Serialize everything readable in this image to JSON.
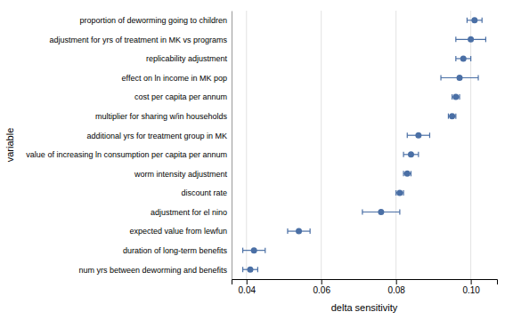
{
  "chart_data": {
    "type": "errorbar",
    "orientation": "horizontal",
    "categories": [
      "proportion of deworming going to children",
      "adjustment for yrs of treatment in MK vs programs",
      "replicability adjustment",
      "effect on ln income in MK pop",
      "cost per capita per annum",
      "multiplier for sharing w/in households",
      "additional yrs for treatment group in MK",
      "value of increasing ln consumption per capita per annum",
      "worm intensity adjustment",
      "discount rate",
      "adjustment for el nino",
      "expected value from lewfun",
      "duration of long-term benefits",
      "num yrs between deworming and benefits"
    ],
    "values": [
      0.101,
      0.1,
      0.098,
      0.097,
      0.096,
      0.095,
      0.086,
      0.084,
      0.083,
      0.081,
      0.076,
      0.054,
      0.042,
      0.041
    ],
    "error_low": [
      0.002,
      0.004,
      0.002,
      0.005,
      0.001,
      0.001,
      0.003,
      0.002,
      0.001,
      0.001,
      0.005,
      0.003,
      0.003,
      0.002
    ],
    "error_high": [
      0.002,
      0.004,
      0.002,
      0.005,
      0.001,
      0.001,
      0.003,
      0.002,
      0.001,
      0.001,
      0.005,
      0.003,
      0.003,
      0.002
    ],
    "color": "#4a6fa5",
    "xlabel": "delta sensitivity",
    "ylabel": "variable",
    "xlim": [
      0.036,
      0.107
    ],
    "xticks": [
      0.04,
      0.06,
      0.08,
      {
        "value": 0.1,
        "label": "0.10"
      }
    ],
    "grid": true
  }
}
